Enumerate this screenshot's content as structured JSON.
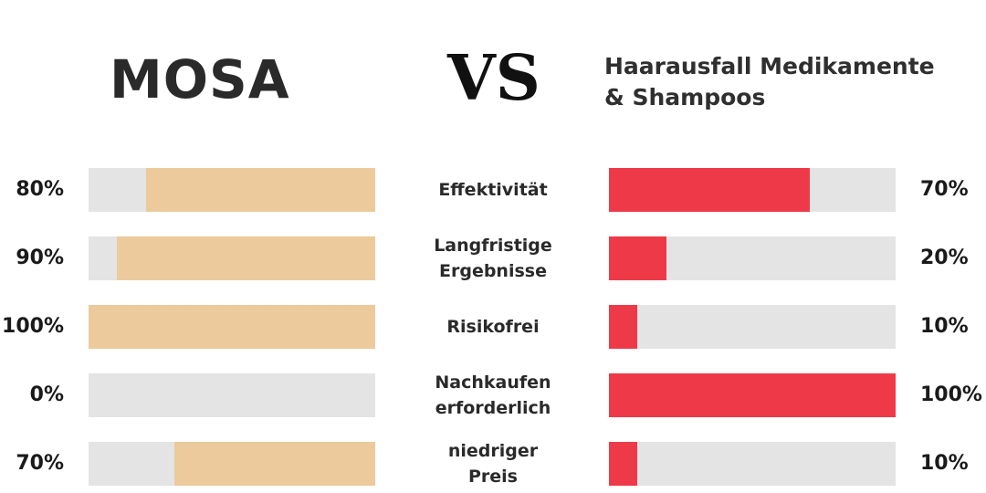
{
  "header": {
    "left_title": "MOSA",
    "vs": "VS",
    "right_title_lines": [
      "Haarausfall Medikamente",
      "& Shampoos"
    ]
  },
  "colors": {
    "left_fill": "#edca9b",
    "right_fill": "#ee3a48",
    "track": "#e4e4e4"
  },
  "chart_data": {
    "type": "bar",
    "title": "",
    "ylim": [
      0,
      100
    ],
    "categories": [
      [
        "Effektivität"
      ],
      [
        "Langfristige",
        "Ergebnisse"
      ],
      [
        "Risikofrei"
      ],
      [
        "Nachkaufen",
        "erforderlich"
      ],
      [
        "niedriger",
        "Preis"
      ]
    ],
    "series": [
      {
        "name": "MOSA",
        "values": [
          80,
          90,
          100,
          0,
          70
        ],
        "labels": [
          "80%",
          "90%",
          "100%",
          "0%",
          "70%"
        ]
      },
      {
        "name": "Haarausfall Medikamente & Shampoos",
        "values": [
          70,
          20,
          10,
          100,
          10
        ],
        "labels": [
          "70%",
          "20%",
          "10%",
          "100%",
          "10%"
        ]
      }
    ]
  }
}
